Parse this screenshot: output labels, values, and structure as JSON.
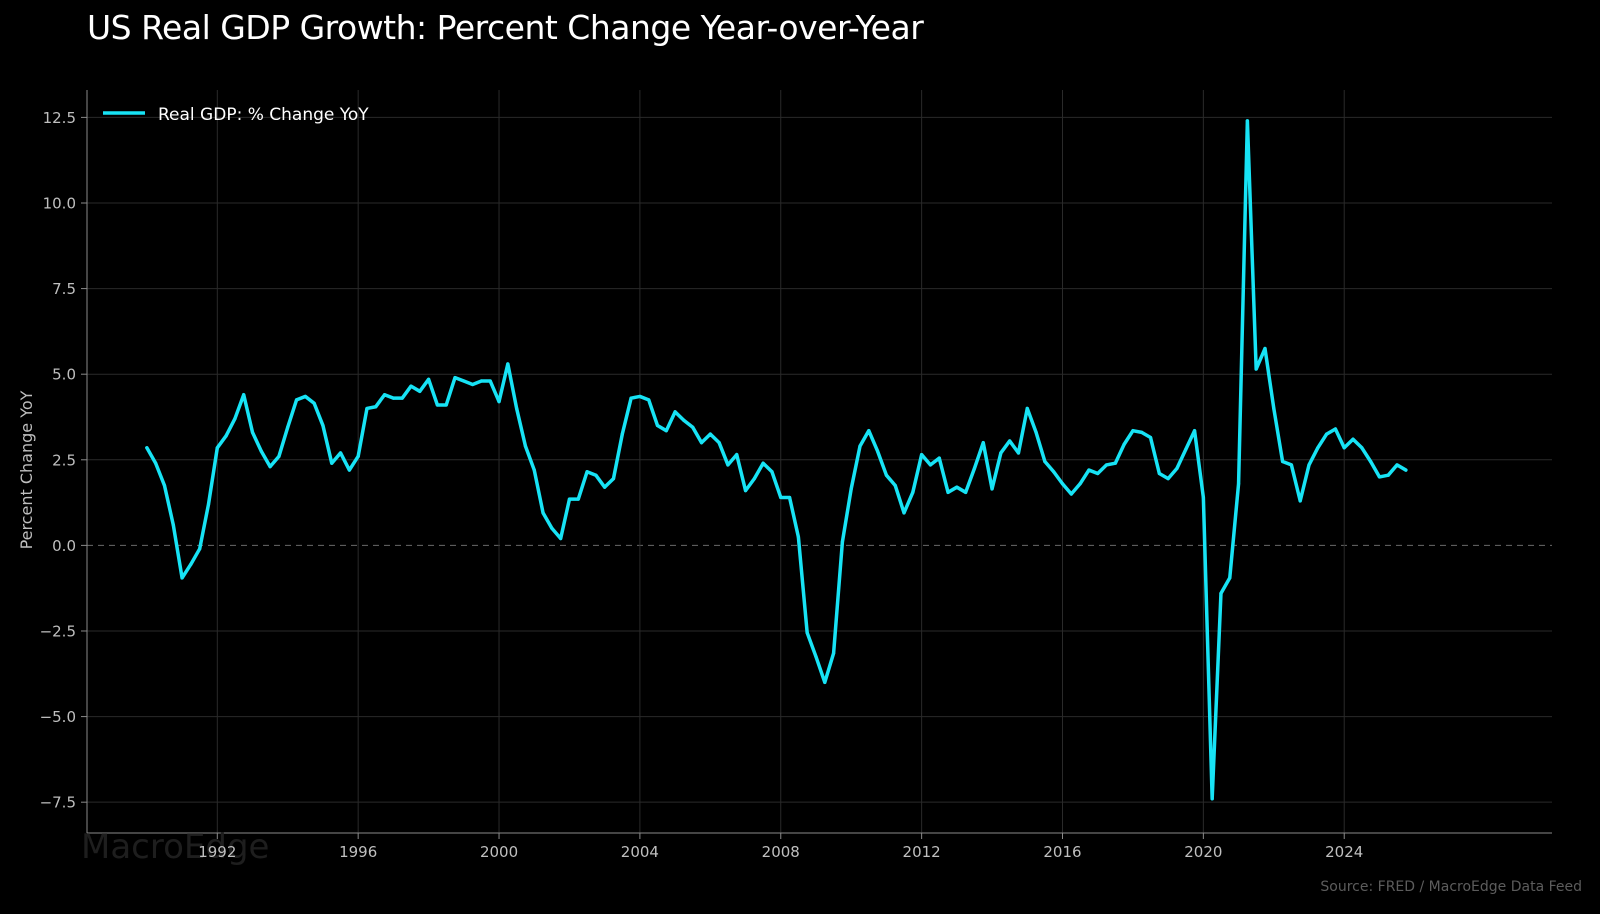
{
  "title": "US Real GDP Growth: Percent Change Year-over-Year",
  "source": "Source: FRED / MacroEdge Data Feed",
  "watermark": "MacroEdge",
  "colors": {
    "background": "#000000",
    "line": "#17e3f5",
    "grid": "#2a2a2a",
    "axis_text": "#bfbfbf",
    "zero_line": "#6a6a6a"
  },
  "chart_data": {
    "type": "line",
    "title": "US Real GDP Growth: Percent Change Year-over-Year",
    "xlabel": "",
    "ylabel": "Percent Change YoY",
    "xlim": [
      1988.3,
      2029.9
    ],
    "ylim": [
      -8.4,
      13.3
    ],
    "x_ticks": [
      1992,
      1996,
      2000,
      2004,
      2008,
      2012,
      2016,
      2020,
      2024
    ],
    "y_ticks": [
      -7.5,
      -5.0,
      -2.5,
      0.0,
      2.5,
      5.0,
      7.5,
      10.0,
      12.5
    ],
    "y_tick_labels": [
      "−7.5",
      "−5.0",
      "−2.5",
      "0.0",
      "2.5",
      "5.0",
      "7.5",
      "10.0",
      "12.5"
    ],
    "grid": true,
    "zero_line": "dashed",
    "legend": "top-left",
    "series": [
      {
        "name": "Real GDP: % Change YoY",
        "x": [
          1990.0,
          1990.25,
          1990.5,
          1990.75,
          1991.0,
          1991.25,
          1991.5,
          1991.75,
          1992.0,
          1992.25,
          1992.5,
          1992.75,
          1993.0,
          1993.25,
          1993.5,
          1993.75,
          1994.0,
          1994.25,
          1994.5,
          1994.75,
          1995.0,
          1995.25,
          1995.5,
          1995.75,
          1996.0,
          1996.25,
          1996.5,
          1996.75,
          1997.0,
          1997.25,
          1997.5,
          1997.75,
          1998.0,
          1998.25,
          1998.5,
          1998.75,
          1999.0,
          1999.25,
          1999.5,
          1999.75,
          2000.0,
          2000.25,
          2000.5,
          2000.75,
          2001.0,
          2001.25,
          2001.5,
          2001.75,
          2002.0,
          2002.25,
          2002.5,
          2002.75,
          2003.0,
          2003.25,
          2003.5,
          2003.75,
          2004.0,
          2004.25,
          2004.5,
          2004.75,
          2005.0,
          2005.25,
          2005.5,
          2005.75,
          2006.0,
          2006.25,
          2006.5,
          2006.75,
          2007.0,
          2007.25,
          2007.5,
          2007.75,
          2008.0,
          2008.25,
          2008.5,
          2008.75,
          2009.0,
          2009.25,
          2009.5,
          2009.75,
          2010.0,
          2010.25,
          2010.5,
          2010.75,
          2011.0,
          2011.25,
          2011.5,
          2011.75,
          2012.0,
          2012.25,
          2012.5,
          2012.75,
          2013.0,
          2013.25,
          2013.5,
          2013.75,
          2014.0,
          2014.25,
          2014.5,
          2014.75,
          2015.0,
          2015.25,
          2015.5,
          2015.75,
          2016.0,
          2016.25,
          2016.5,
          2016.75,
          2017.0,
          2017.25,
          2017.5,
          2017.75,
          2018.0,
          2018.25,
          2018.5,
          2018.75,
          2019.0,
          2019.25,
          2019.5,
          2019.75,
          2020.0,
          2020.25,
          2020.5,
          2020.75,
          2021.0,
          2021.25,
          2021.5,
          2021.75,
          2022.0,
          2022.25,
          2022.5,
          2022.75,
          2023.0,
          2023.25,
          2023.5,
          2023.75,
          2024.0,
          2024.25,
          2024.5,
          2024.75,
          2025.0,
          2025.25,
          2025.5,
          2025.75
        ],
        "values": [
          2.85,
          2.4,
          1.75,
          0.6,
          -0.95,
          -0.55,
          -0.1,
          1.2,
          2.85,
          3.2,
          3.7,
          4.4,
          3.3,
          2.75,
          2.3,
          2.6,
          3.45,
          4.25,
          4.35,
          4.15,
          3.5,
          2.4,
          2.7,
          2.2,
          2.6,
          4.0,
          4.05,
          4.4,
          4.3,
          4.3,
          4.65,
          4.5,
          4.85,
          4.1,
          4.1,
          4.9,
          4.8,
          4.7,
          4.8,
          4.8,
          4.2,
          5.3,
          4.0,
          2.9,
          2.2,
          0.95,
          0.5,
          0.2,
          1.35,
          1.35,
          2.15,
          2.05,
          1.7,
          1.95,
          3.25,
          4.3,
          4.35,
          4.25,
          3.5,
          3.35,
          3.9,
          3.65,
          3.45,
          3.0,
          3.25,
          3.0,
          2.35,
          2.65,
          1.6,
          1.95,
          2.4,
          2.15,
          1.4,
          1.4,
          0.25,
          -2.55,
          -3.25,
          -4.0,
          -3.15,
          0.1,
          1.65,
          2.9,
          3.35,
          2.75,
          2.05,
          1.75,
          0.95,
          1.55,
          2.65,
          2.35,
          2.55,
          1.55,
          1.7,
          1.55,
          2.25,
          3.0,
          1.65,
          2.7,
          3.05,
          2.7,
          4.0,
          3.3,
          2.45,
          2.15,
          1.8,
          1.5,
          1.8,
          2.2,
          2.1,
          2.35,
          2.4,
          2.95,
          3.35,
          3.3,
          3.15,
          2.1,
          1.95,
          2.25,
          2.8,
          3.35,
          1.4,
          -7.4,
          -1.4,
          -0.95,
          1.8,
          12.4,
          5.15,
          5.75,
          4.0,
          2.45,
          2.35,
          1.3,
          2.35,
          2.85,
          3.25,
          3.4,
          2.85,
          3.1,
          2.85,
          2.45,
          2.0,
          2.05,
          2.35,
          2.2
        ]
      }
    ]
  }
}
